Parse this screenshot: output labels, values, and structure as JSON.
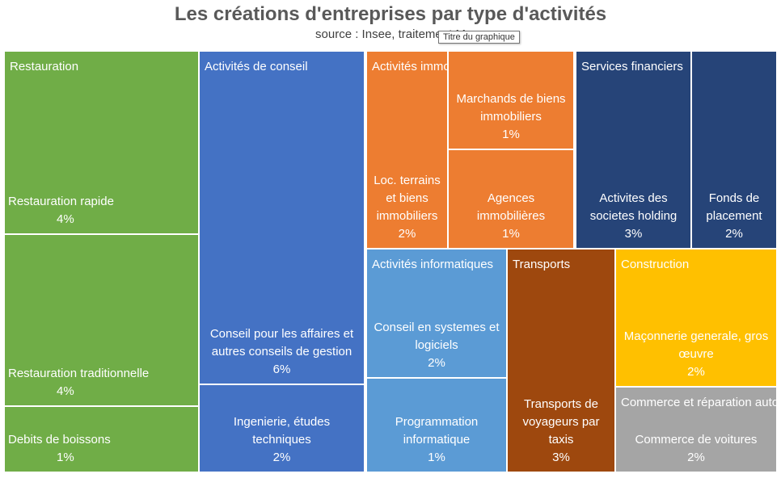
{
  "title": "Les créations d'entreprises par type d'activités",
  "subtitle": "source : Insee, traitement M",
  "tooltip": "Titre du graphique",
  "chart_data": {
    "type": "treemap",
    "title": "Les créations d'entreprises par type d'activités",
    "subtitle": "source : Insee, traitement M",
    "groups": [
      {
        "name": "Restauration",
        "color": "#70AD47",
        "items": [
          {
            "name": "Restauration rapide",
            "value": 4,
            "label": "4%"
          },
          {
            "name": "Restauration traditionnelle",
            "value": 4,
            "label": "4%"
          },
          {
            "name": "Debits de boissons",
            "value": 1,
            "label": "1%"
          }
        ]
      },
      {
        "name": "Activités de conseil",
        "color": "#4472C4",
        "items": [
          {
            "name": "Conseil pour les affaires et autres conseils de gestion",
            "value": 6,
            "label": "6%"
          },
          {
            "name": "Ingenierie, études techniques",
            "value": 2,
            "label": "2%"
          }
        ]
      },
      {
        "name": "Activités immobilières",
        "color": "#ED7D31",
        "items": [
          {
            "name": "Loc. terrains et biens immobiliers",
            "value": 2,
            "label": "2%"
          },
          {
            "name": "Marchands de biens immobiliers",
            "value": 1,
            "label": "1%"
          },
          {
            "name": "Agences immobilières",
            "value": 1,
            "label": "1%"
          }
        ]
      },
      {
        "name": "Services financiers",
        "color": "#264478",
        "items": [
          {
            "name": "Activites des societes holding",
            "value": 3,
            "label": "3%"
          },
          {
            "name": "Fonds de placement",
            "value": 2,
            "label": "2%"
          }
        ]
      },
      {
        "name": "Activités informatiques",
        "color": "#5B9BD5",
        "items": [
          {
            "name": "Conseil en systemes et logiciels",
            "value": 2,
            "label": "2%"
          },
          {
            "name": "Programmation informatique",
            "value": 1,
            "label": "1%"
          }
        ]
      },
      {
        "name": "Transports",
        "color": "#9E480E",
        "items": [
          {
            "name": "Transports de voyageurs par taxis",
            "value": 3,
            "label": "3%"
          }
        ]
      },
      {
        "name": "Construction",
        "color": "#FFC000",
        "items": [
          {
            "name": "Maçonnerie generale, gros œuvre",
            "value": 2,
            "label": "2%"
          }
        ]
      },
      {
        "name": "Commerce et réparation autos",
        "color": "#A5A5A5",
        "items": [
          {
            "name": "Commerce de voitures",
            "value": 2,
            "label": "2%"
          }
        ]
      }
    ]
  }
}
